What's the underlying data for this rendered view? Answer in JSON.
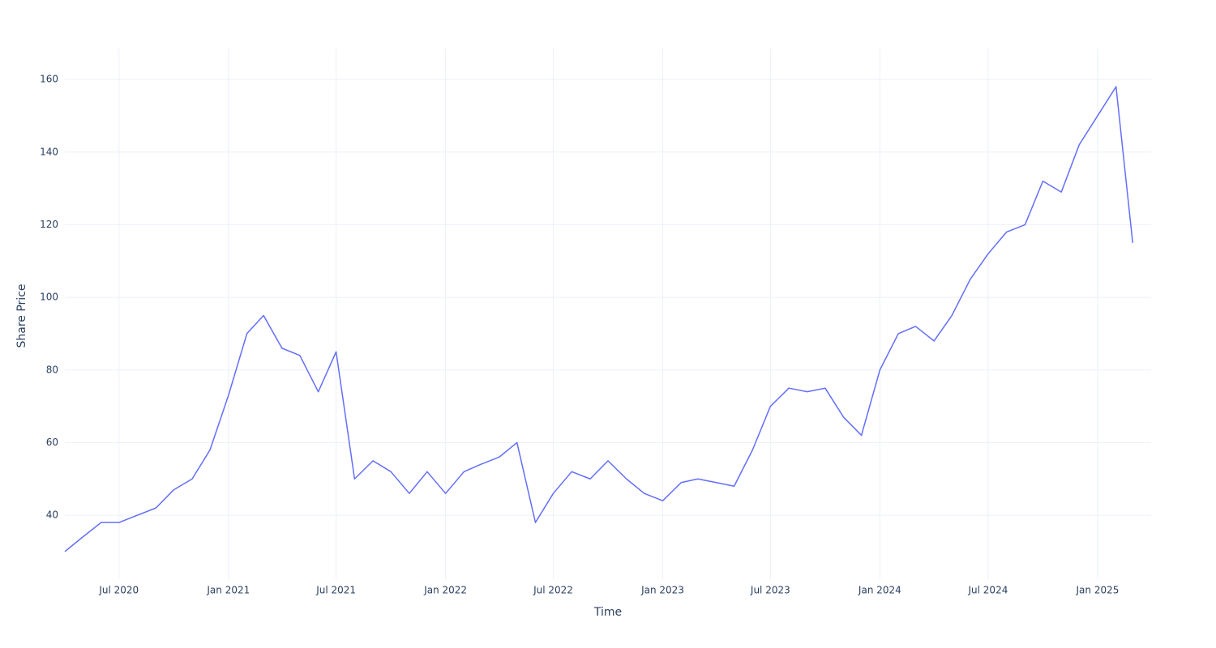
{
  "chart_data": {
    "type": "line",
    "x_label": "Time",
    "y_label": "Share Price",
    "x": [
      "2020-04",
      "2020-05",
      "2020-06",
      "2020-07",
      "2020-08",
      "2020-09",
      "2020-10",
      "2020-11",
      "2020-12",
      "2021-01",
      "2021-02",
      "2021-03",
      "2021-04",
      "2021-05",
      "2021-06",
      "2021-07",
      "2021-08",
      "2021-09",
      "2021-10",
      "2021-11",
      "2021-12",
      "2022-01",
      "2022-02",
      "2022-03",
      "2022-04",
      "2022-05",
      "2022-06",
      "2022-07",
      "2022-08",
      "2022-09",
      "2022-10",
      "2022-11",
      "2022-12",
      "2023-01",
      "2023-02",
      "2023-03",
      "2023-04",
      "2023-05",
      "2023-06",
      "2023-07",
      "2023-08",
      "2023-09",
      "2023-10",
      "2023-11",
      "2023-12",
      "2024-01",
      "2024-02",
      "2024-03",
      "2024-04",
      "2024-05",
      "2024-06",
      "2024-07",
      "2024-08",
      "2024-09",
      "2024-10",
      "2024-11",
      "2024-12",
      "2025-01",
      "2025-02",
      "2025-03"
    ],
    "series": [
      {
        "color": "#636efa",
        "values": [
          30,
          34,
          38,
          38,
          40,
          42,
          47,
          50,
          58,
          73,
          90,
          95,
          86,
          84,
          74,
          85,
          50,
          55,
          52,
          46,
          52,
          46,
          52,
          54,
          56,
          60,
          38,
          46,
          52,
          50,
          55,
          50,
          46,
          44,
          49,
          50,
          49,
          48,
          58,
          70,
          75,
          74,
          75,
          67,
          62,
          80,
          90,
          92,
          88,
          95,
          105,
          112,
          118,
          120,
          132,
          129,
          142,
          150,
          158,
          115
        ]
      }
    ],
    "xlim": [
      "2020-04",
      "2025-04"
    ],
    "xticks": [
      {
        "value": "2020-07",
        "label": "Jul 2020"
      },
      {
        "value": "2021-01",
        "label": "Jan 2021"
      },
      {
        "value": "2021-07",
        "label": "Jul 2021"
      },
      {
        "value": "2022-01",
        "label": "Jan 2022"
      },
      {
        "value": "2022-07",
        "label": "Jul 2022"
      },
      {
        "value": "2023-01",
        "label": "Jan 2023"
      },
      {
        "value": "2023-07",
        "label": "Jul 2023"
      },
      {
        "value": "2024-01",
        "label": "Jan 2024"
      },
      {
        "value": "2024-07",
        "label": "Jul 2024"
      },
      {
        "value": "2025-01",
        "label": "Jan 2025"
      }
    ],
    "ylim": [
      22.4,
      168.5
    ],
    "yticks": [
      40,
      60,
      80,
      100,
      120,
      140,
      160
    ],
    "grid": true
  }
}
